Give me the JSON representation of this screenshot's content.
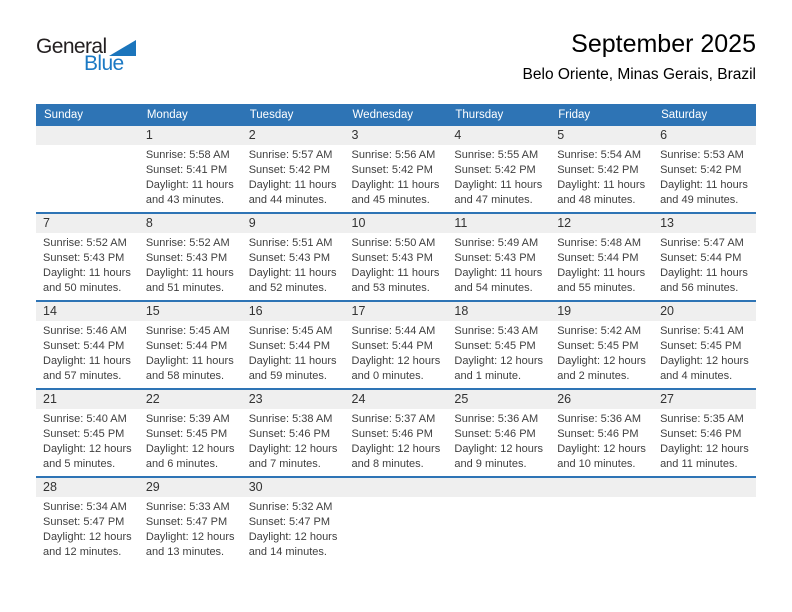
{
  "logo": {
    "general": "General",
    "blue": "Blue"
  },
  "header": {
    "title": "September 2025",
    "subtitle": "Belo Oriente, Minas Gerais, Brazil"
  },
  "colors": {
    "header_blue": "#2E74B5",
    "row_line_blue": "#2E74B5",
    "band_gray": "#EFEFEF",
    "logo_blue": "#1B79C4",
    "body_text": "#3F3F3F"
  },
  "calendar": {
    "weekday_headers": [
      "Sunday",
      "Monday",
      "Tuesday",
      "Wednesday",
      "Thursday",
      "Friday",
      "Saturday"
    ],
    "weeks": [
      [
        {
          "day": "",
          "lines": []
        },
        {
          "day": "1",
          "lines": [
            "Sunrise: 5:58 AM",
            "Sunset: 5:41 PM",
            "Daylight: 11 hours",
            "and 43 minutes."
          ]
        },
        {
          "day": "2",
          "lines": [
            "Sunrise: 5:57 AM",
            "Sunset: 5:42 PM",
            "Daylight: 11 hours",
            "and 44 minutes."
          ]
        },
        {
          "day": "3",
          "lines": [
            "Sunrise: 5:56 AM",
            "Sunset: 5:42 PM",
            "Daylight: 11 hours",
            "and 45 minutes."
          ]
        },
        {
          "day": "4",
          "lines": [
            "Sunrise: 5:55 AM",
            "Sunset: 5:42 PM",
            "Daylight: 11 hours",
            "and 47 minutes."
          ]
        },
        {
          "day": "5",
          "lines": [
            "Sunrise: 5:54 AM",
            "Sunset: 5:42 PM",
            "Daylight: 11 hours",
            "and 48 minutes."
          ]
        },
        {
          "day": "6",
          "lines": [
            "Sunrise: 5:53 AM",
            "Sunset: 5:42 PM",
            "Daylight: 11 hours",
            "and 49 minutes."
          ]
        }
      ],
      [
        {
          "day": "7",
          "lines": [
            "Sunrise: 5:52 AM",
            "Sunset: 5:43 PM",
            "Daylight: 11 hours",
            "and 50 minutes."
          ]
        },
        {
          "day": "8",
          "lines": [
            "Sunrise: 5:52 AM",
            "Sunset: 5:43 PM",
            "Daylight: 11 hours",
            "and 51 minutes."
          ]
        },
        {
          "day": "9",
          "lines": [
            "Sunrise: 5:51 AM",
            "Sunset: 5:43 PM",
            "Daylight: 11 hours",
            "and 52 minutes."
          ]
        },
        {
          "day": "10",
          "lines": [
            "Sunrise: 5:50 AM",
            "Sunset: 5:43 PM",
            "Daylight: 11 hours",
            "and 53 minutes."
          ]
        },
        {
          "day": "11",
          "lines": [
            "Sunrise: 5:49 AM",
            "Sunset: 5:43 PM",
            "Daylight: 11 hours",
            "and 54 minutes."
          ]
        },
        {
          "day": "12",
          "lines": [
            "Sunrise: 5:48 AM",
            "Sunset: 5:44 PM",
            "Daylight: 11 hours",
            "and 55 minutes."
          ]
        },
        {
          "day": "13",
          "lines": [
            "Sunrise: 5:47 AM",
            "Sunset: 5:44 PM",
            "Daylight: 11 hours",
            "and 56 minutes."
          ]
        }
      ],
      [
        {
          "day": "14",
          "lines": [
            "Sunrise: 5:46 AM",
            "Sunset: 5:44 PM",
            "Daylight: 11 hours",
            "and 57 minutes."
          ]
        },
        {
          "day": "15",
          "lines": [
            "Sunrise: 5:45 AM",
            "Sunset: 5:44 PM",
            "Daylight: 11 hours",
            "and 58 minutes."
          ]
        },
        {
          "day": "16",
          "lines": [
            "Sunrise: 5:45 AM",
            "Sunset: 5:44 PM",
            "Daylight: 11 hours",
            "and 59 minutes."
          ]
        },
        {
          "day": "17",
          "lines": [
            "Sunrise: 5:44 AM",
            "Sunset: 5:44 PM",
            "Daylight: 12 hours",
            "and 0 minutes."
          ]
        },
        {
          "day": "18",
          "lines": [
            "Sunrise: 5:43 AM",
            "Sunset: 5:45 PM",
            "Daylight: 12 hours",
            "and 1 minute."
          ]
        },
        {
          "day": "19",
          "lines": [
            "Sunrise: 5:42 AM",
            "Sunset: 5:45 PM",
            "Daylight: 12 hours",
            "and 2 minutes."
          ]
        },
        {
          "day": "20",
          "lines": [
            "Sunrise: 5:41 AM",
            "Sunset: 5:45 PM",
            "Daylight: 12 hours",
            "and 4 minutes."
          ]
        }
      ],
      [
        {
          "day": "21",
          "lines": [
            "Sunrise: 5:40 AM",
            "Sunset: 5:45 PM",
            "Daylight: 12 hours",
            "and 5 minutes."
          ]
        },
        {
          "day": "22",
          "lines": [
            "Sunrise: 5:39 AM",
            "Sunset: 5:45 PM",
            "Daylight: 12 hours",
            "and 6 minutes."
          ]
        },
        {
          "day": "23",
          "lines": [
            "Sunrise: 5:38 AM",
            "Sunset: 5:46 PM",
            "Daylight: 12 hours",
            "and 7 minutes."
          ]
        },
        {
          "day": "24",
          "lines": [
            "Sunrise: 5:37 AM",
            "Sunset: 5:46 PM",
            "Daylight: 12 hours",
            "and 8 minutes."
          ]
        },
        {
          "day": "25",
          "lines": [
            "Sunrise: 5:36 AM",
            "Sunset: 5:46 PM",
            "Daylight: 12 hours",
            "and 9 minutes."
          ]
        },
        {
          "day": "26",
          "lines": [
            "Sunrise: 5:36 AM",
            "Sunset: 5:46 PM",
            "Daylight: 12 hours",
            "and 10 minutes."
          ]
        },
        {
          "day": "27",
          "lines": [
            "Sunrise: 5:35 AM",
            "Sunset: 5:46 PM",
            "Daylight: 12 hours",
            "and 11 minutes."
          ]
        }
      ],
      [
        {
          "day": "28",
          "lines": [
            "Sunrise: 5:34 AM",
            "Sunset: 5:47 PM",
            "Daylight: 12 hours",
            "and 12 minutes."
          ]
        },
        {
          "day": "29",
          "lines": [
            "Sunrise: 5:33 AM",
            "Sunset: 5:47 PM",
            "Daylight: 12 hours",
            "and 13 minutes."
          ]
        },
        {
          "day": "30",
          "lines": [
            "Sunrise: 5:32 AM",
            "Sunset: 5:47 PM",
            "Daylight: 12 hours",
            "and 14 minutes."
          ]
        },
        {
          "day": "",
          "lines": []
        },
        {
          "day": "",
          "lines": []
        },
        {
          "day": "",
          "lines": []
        },
        {
          "day": "",
          "lines": []
        }
      ]
    ]
  }
}
